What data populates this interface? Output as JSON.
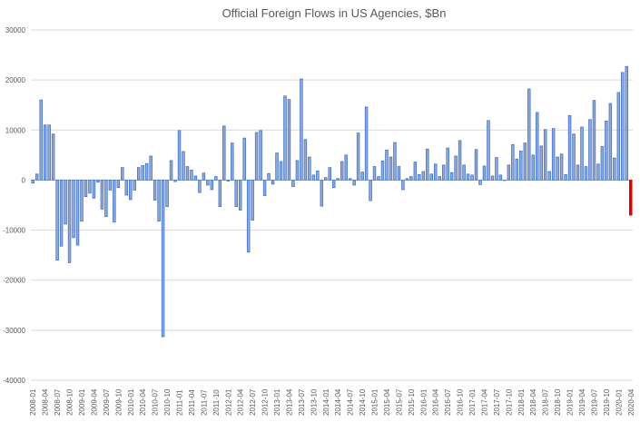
{
  "chart_data": {
    "type": "bar",
    "title": "Official Foreign Flows in US Agencies, $Bn",
    "xlabel": "",
    "ylabel": "",
    "ylim": [
      -40000,
      30000
    ],
    "yticks": [
      30000,
      20000,
      10000,
      0,
      -10000,
      -20000,
      -30000,
      -40000
    ],
    "grid": true,
    "start": "2008-01",
    "bar_color": "#4472C4",
    "highlight_color": "#E00000",
    "highlight_last": true,
    "values": [
      -600,
      1200,
      16000,
      11000,
      11000,
      9200,
      -16000,
      -13200,
      -8800,
      -16500,
      -11500,
      -13000,
      -8200,
      -3300,
      -2600,
      -3600,
      -400,
      -5800,
      -7300,
      -2000,
      -8400,
      -1500,
      2500,
      -3000,
      -3900,
      -2000,
      2500,
      2900,
      3300,
      4800,
      -4000,
      -8200,
      -31300,
      -5300,
      3900,
      -300,
      9900,
      5700,
      2700,
      2000,
      800,
      -2500,
      1400,
      -1000,
      -1900,
      700,
      -5300,
      10800,
      -200,
      7400,
      -5300,
      -6000,
      8400,
      -14400,
      -8000,
      9500,
      9900,
      -3100,
      1300,
      -800,
      5400,
      3700,
      16800,
      16100,
      -1300,
      3900,
      20200,
      8100,
      4600,
      1000,
      1800,
      -5200,
      500,
      2500,
      -1500,
      300,
      3700,
      5000,
      300,
      -1000,
      9400,
      1600,
      14600,
      -4100,
      2700,
      700,
      3800,
      6000,
      4600,
      7500,
      2700,
      -1900,
      300,
      700,
      3600,
      1100,
      1700,
      6200,
      1200,
      3200,
      700,
      3000,
      6400,
      1500,
      4800,
      7900,
      3000,
      1200,
      1000,
      6100,
      -900,
      2800,
      11900,
      800,
      4500,
      1000,
      0,
      3000,
      7100,
      4200,
      5800,
      7400,
      18200,
      5000,
      13500,
      6800,
      10100,
      1700,
      10300,
      4600,
      5200,
      1100,
      12900,
      9200,
      3000,
      10600,
      2700,
      12100,
      15900,
      3200,
      6700,
      11800,
      15300,
      4400,
      17500,
      21500,
      22700,
      -7000
    ]
  }
}
